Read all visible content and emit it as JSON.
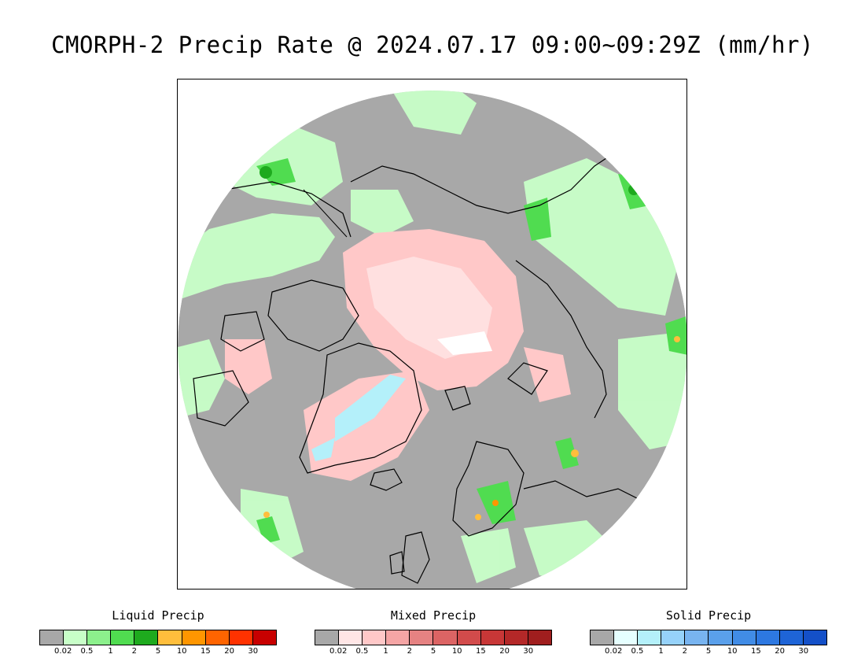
{
  "title": "CMORPH-2 Precip Rate @ 2024.07.17 09:00~09:29Z (mm/hr)",
  "map": {
    "projection": "north-polar-stereographic",
    "background_no_data": "#ffffff",
    "no_precip_color": "#a8a8a8",
    "coastline_color": "#000000"
  },
  "legends": [
    {
      "key": "liquid",
      "title": "Liquid Precip",
      "colors": [
        "#a8a8a8",
        "#c8ffc8",
        "#8cf08c",
        "#50dc50",
        "#1eaa1e",
        "#ffbe3c",
        "#ff9600",
        "#ff6400",
        "#ff3200",
        "#c80000"
      ],
      "ticks": [
        "0.02",
        "0.5",
        "1",
        "2",
        "5",
        "10",
        "15",
        "20",
        "30"
      ]
    },
    {
      "key": "mixed",
      "title": "Mixed Precip",
      "colors": [
        "#a8a8a8",
        "#ffe6e6",
        "#ffc8c8",
        "#f5a5a5",
        "#e68282",
        "#dc6464",
        "#d24b4b",
        "#c83737",
        "#b42828",
        "#a01e1e"
      ],
      "ticks": [
        "0.02",
        "0.5",
        "1",
        "2",
        "5",
        "10",
        "15",
        "20",
        "30"
      ]
    },
    {
      "key": "solid",
      "title": "Solid Precip",
      "colors": [
        "#a8a8a8",
        "#e6ffff",
        "#b4f0fa",
        "#96d2fa",
        "#78b4f0",
        "#5aa0eb",
        "#418ce6",
        "#2d78e1",
        "#1e64d7",
        "#1450c8"
      ],
      "ticks": [
        "0.02",
        "0.5",
        "1",
        "2",
        "5",
        "10",
        "15",
        "20",
        "30"
      ]
    }
  ]
}
